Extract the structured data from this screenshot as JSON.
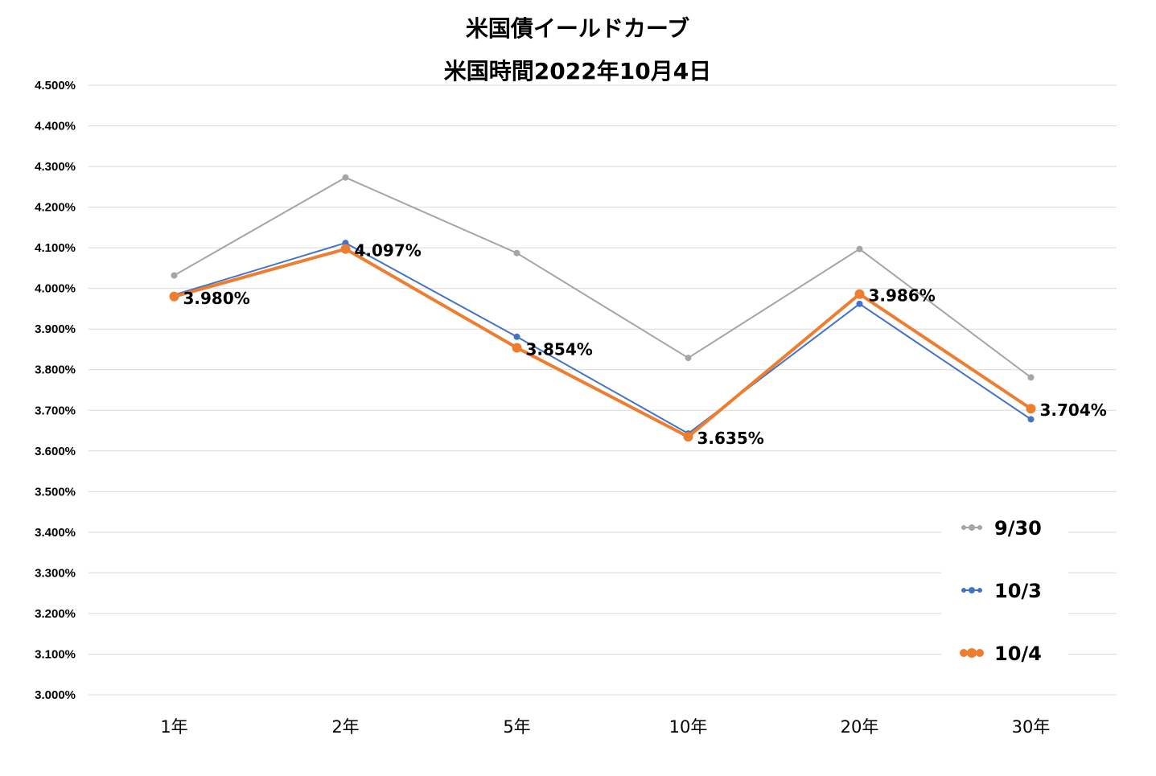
{
  "chart_data": {
    "type": "line",
    "title": "米国債イールドカーブ",
    "subtitle": "米国時間2022年10月4日",
    "xlabel": "",
    "ylabel": "",
    "categories": [
      "1年",
      "2年",
      "5年",
      "10年",
      "20年",
      "30年"
    ],
    "ylim": [
      3.0,
      4.5
    ],
    "ytick_step": 0.1,
    "ytick_labels": [
      "3.000%",
      "3.100%",
      "3.200%",
      "3.300%",
      "3.400%",
      "3.500%",
      "3.600%",
      "3.700%",
      "3.800%",
      "3.900%",
      "4.000%",
      "4.100%",
      "4.200%",
      "4.300%",
      "4.400%",
      "4.500%"
    ],
    "grid": true,
    "legend_position": "bottom-right",
    "series": [
      {
        "name": "9/30",
        "values": [
          4.032,
          4.273,
          4.087,
          3.829,
          4.097,
          3.781
        ],
        "color": "#a5a5a5",
        "line_width": 2,
        "marker_radius": 4
      },
      {
        "name": "10/3",
        "values": [
          3.984,
          4.112,
          3.881,
          3.643,
          3.962,
          3.678
        ],
        "color": "#4472c4",
        "line_width": 2,
        "marker_radius": 4
      },
      {
        "name": "10/4",
        "values": [
          3.98,
          4.097,
          3.854,
          3.635,
          3.986,
          3.704
        ],
        "color": "#ed7d31",
        "line_width": 4,
        "marker_radius": 6,
        "data_labels": [
          "3.980%",
          "4.097%",
          "3.854%",
          "3.635%",
          "3.986%",
          "3.704%"
        ]
      }
    ]
  }
}
